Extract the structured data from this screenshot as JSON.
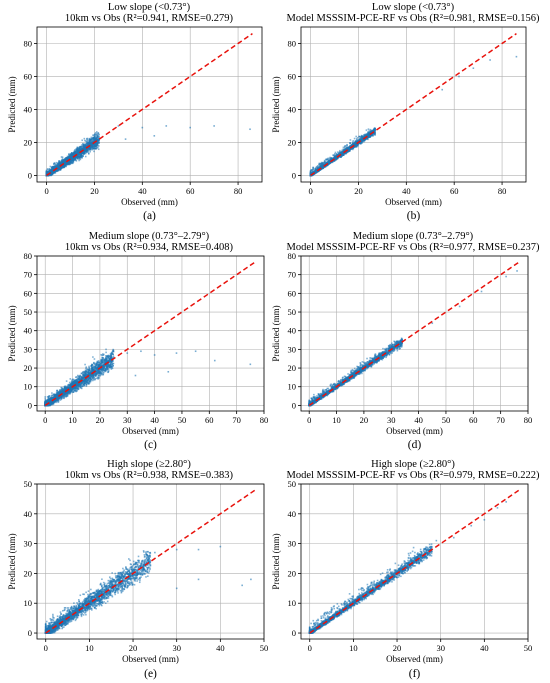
{
  "colors": {
    "scatter": "#1f77b4",
    "identity_line": "#e8120c",
    "grid": "#b0b0b0"
  },
  "chart_data": [
    {
      "id": "a",
      "type": "scatter",
      "title_line1": "Low slope (<0.73°)",
      "title_line2": "10km vs Obs (R²=0.941, RMSE=0.279)",
      "xlabel": "Observed (mm)",
      "ylabel": "Predicted (mm)",
      "xlim": [
        -4,
        90
      ],
      "ylim": [
        -4,
        90
      ],
      "xticks": [
        "0",
        "20",
        "40",
        "60",
        "80"
      ],
      "xtick_values": [
        0,
        20,
        40,
        60,
        80
      ],
      "yticks": [
        "0",
        "20",
        "40",
        "60",
        "80"
      ],
      "ytick_values": [
        0,
        20,
        40,
        60,
        80
      ],
      "identity_line": [
        0,
        86
      ],
      "grid": true,
      "cloud": {
        "x_max": 22,
        "spread": 3.2,
        "cap": 30
      },
      "outliers": [
        [
          30,
          30
        ],
        [
          40,
          29
        ],
        [
          50,
          30
        ],
        [
          60,
          29
        ],
        [
          70,
          30
        ],
        [
          85,
          28
        ],
        [
          33,
          22
        ],
        [
          45,
          24
        ]
      ],
      "panel_label": "(a)"
    },
    {
      "id": "b",
      "type": "scatter",
      "title_line1": "Low slope (<0.73°)",
      "title_line2": "Model MSSSIM-PCE-RF vs Obs (R²=0.981, RMSE=0.156)",
      "xlabel": "Observed (mm)",
      "ylabel": "Predicted (mm)",
      "xlim": [
        -4,
        90
      ],
      "ylim": [
        -4,
        90
      ],
      "xticks": [
        "0",
        "20",
        "40",
        "60",
        "80"
      ],
      "xtick_values": [
        0,
        20,
        40,
        60,
        80
      ],
      "yticks": [
        "0",
        "20",
        "40",
        "60",
        "80"
      ],
      "ytick_values": [
        0,
        20,
        40,
        60,
        80
      ],
      "identity_line": [
        0,
        86
      ],
      "grid": true,
      "cloud": {
        "x_max": 27,
        "spread": 1.4,
        "cap": 30
      },
      "outliers": [
        [
          55,
          52
        ],
        [
          68,
          65
        ],
        [
          75,
          70
        ],
        [
          86,
          72
        ],
        [
          62,
          60
        ]
      ],
      "panel_label": "(b)"
    },
    {
      "id": "c",
      "type": "scatter",
      "title_line1": "Medium slope (0.73°–2.79°)",
      "title_line2": "10km vs Obs (R²=0.934, RMSE=0.408)",
      "xlabel": "Observed (mm)",
      "ylabel": "Predicted (mm)",
      "xlim": [
        -3,
        80
      ],
      "ylim": [
        -3,
        80
      ],
      "xticks": [
        "0",
        "10",
        "20",
        "30",
        "40",
        "50",
        "60",
        "70",
        "80"
      ],
      "xtick_values": [
        0,
        10,
        20,
        30,
        40,
        50,
        60,
        70,
        80
      ],
      "yticks": [
        "0",
        "10",
        "20",
        "30",
        "40",
        "50",
        "60",
        "70",
        "80"
      ],
      "ytick_values": [
        0,
        10,
        20,
        30,
        40,
        50,
        60,
        70,
        80
      ],
      "identity_line": [
        0,
        77
      ],
      "grid": true,
      "cloud": {
        "x_max": 25,
        "spread": 3.8,
        "cap": 30
      },
      "outliers": [
        [
          30,
          28
        ],
        [
          35,
          29
        ],
        [
          40,
          27
        ],
        [
          48,
          28
        ],
        [
          55,
          29
        ],
        [
          62,
          24
        ],
        [
          75,
          22
        ],
        [
          33,
          16
        ],
        [
          45,
          18
        ]
      ],
      "panel_label": "(c)"
    },
    {
      "id": "d",
      "type": "scatter",
      "title_line1": "Medium slope (0.73°–2.79°)",
      "title_line2": "Model MSSSIM-PCE-RF vs Obs (R²=0.977, RMSE=0.237)",
      "xlabel": "Observed (mm)",
      "ylabel": "Predicted (mm)",
      "xlim": [
        -3,
        80
      ],
      "ylim": [
        -3,
        80
      ],
      "xticks": [
        "0",
        "10",
        "20",
        "30",
        "40",
        "50",
        "60",
        "70",
        "80"
      ],
      "xtick_values": [
        0,
        10,
        20,
        30,
        40,
        50,
        60,
        70,
        80
      ],
      "yticks": [
        "0",
        "10",
        "20",
        "30",
        "40",
        "50",
        "60",
        "70",
        "80"
      ],
      "ytick_values": [
        0,
        10,
        20,
        30,
        40,
        50,
        60,
        70,
        80
      ],
      "identity_line": [
        0,
        77
      ],
      "grid": true,
      "cloud": {
        "x_max": 34,
        "spread": 1.6,
        "cap": 40
      },
      "outliers": [
        [
          45,
          44
        ],
        [
          55,
          53
        ],
        [
          63,
          61
        ],
        [
          72,
          69
        ],
        [
          76,
          72
        ]
      ],
      "panel_label": "(d)"
    },
    {
      "id": "e",
      "type": "scatter",
      "title_line1": "High slope (≥2.80°)",
      "title_line2": "10km vs Obs (R²=0.938, RMSE=0.383)",
      "xlabel": "Observed (mm)",
      "ylabel": "Predicted (mm)",
      "xlim": [
        -2,
        50
      ],
      "ylim": [
        -2,
        50
      ],
      "xticks": [
        "0",
        "10",
        "20",
        "30",
        "40",
        "50"
      ],
      "xtick_values": [
        0,
        10,
        20,
        30,
        40,
        50
      ],
      "yticks": [
        "0",
        "10",
        "20",
        "30",
        "40",
        "50"
      ],
      "ytick_values": [
        0,
        10,
        20,
        30,
        40,
        50
      ],
      "identity_line": [
        0,
        48
      ],
      "grid": true,
      "cloud": {
        "x_max": 24,
        "spread": 3.0,
        "cap": 29
      },
      "outliers": [
        [
          25,
          27
        ],
        [
          30,
          28
        ],
        [
          35,
          28
        ],
        [
          40,
          29
        ],
        [
          45,
          16
        ],
        [
          30,
          15
        ],
        [
          35,
          18
        ],
        [
          47,
          18
        ]
      ],
      "panel_label": "(e)"
    },
    {
      "id": "f",
      "type": "scatter",
      "title_line1": "High slope (≥2.80°)",
      "title_line2": "Model MSSSIM-PCE-RF vs Obs (R²=0.979, RMSE=0.222)",
      "xlabel": "Observed (mm)",
      "ylabel": "Predicted (mm)",
      "xlim": [
        -2,
        50
      ],
      "ylim": [
        -2,
        50
      ],
      "xticks": [
        "0",
        "10",
        "20",
        "30",
        "40",
        "50"
      ],
      "xtick_values": [
        0,
        10,
        20,
        30,
        40,
        50
      ],
      "yticks": [
        "0",
        "10",
        "20",
        "30",
        "40",
        "50"
      ],
      "ytick_values": [
        0,
        10,
        20,
        30,
        40,
        50
      ],
      "identity_line": [
        0,
        48
      ],
      "grid": true,
      "cloud": {
        "x_max": 28,
        "spread": 1.3,
        "cap": 34
      },
      "outliers": [
        [
          33,
          32
        ],
        [
          37,
          36
        ],
        [
          40,
          38
        ],
        [
          43,
          42
        ],
        [
          45,
          44
        ],
        [
          29,
          31
        ]
      ],
      "panel_label": "(f)"
    }
  ]
}
